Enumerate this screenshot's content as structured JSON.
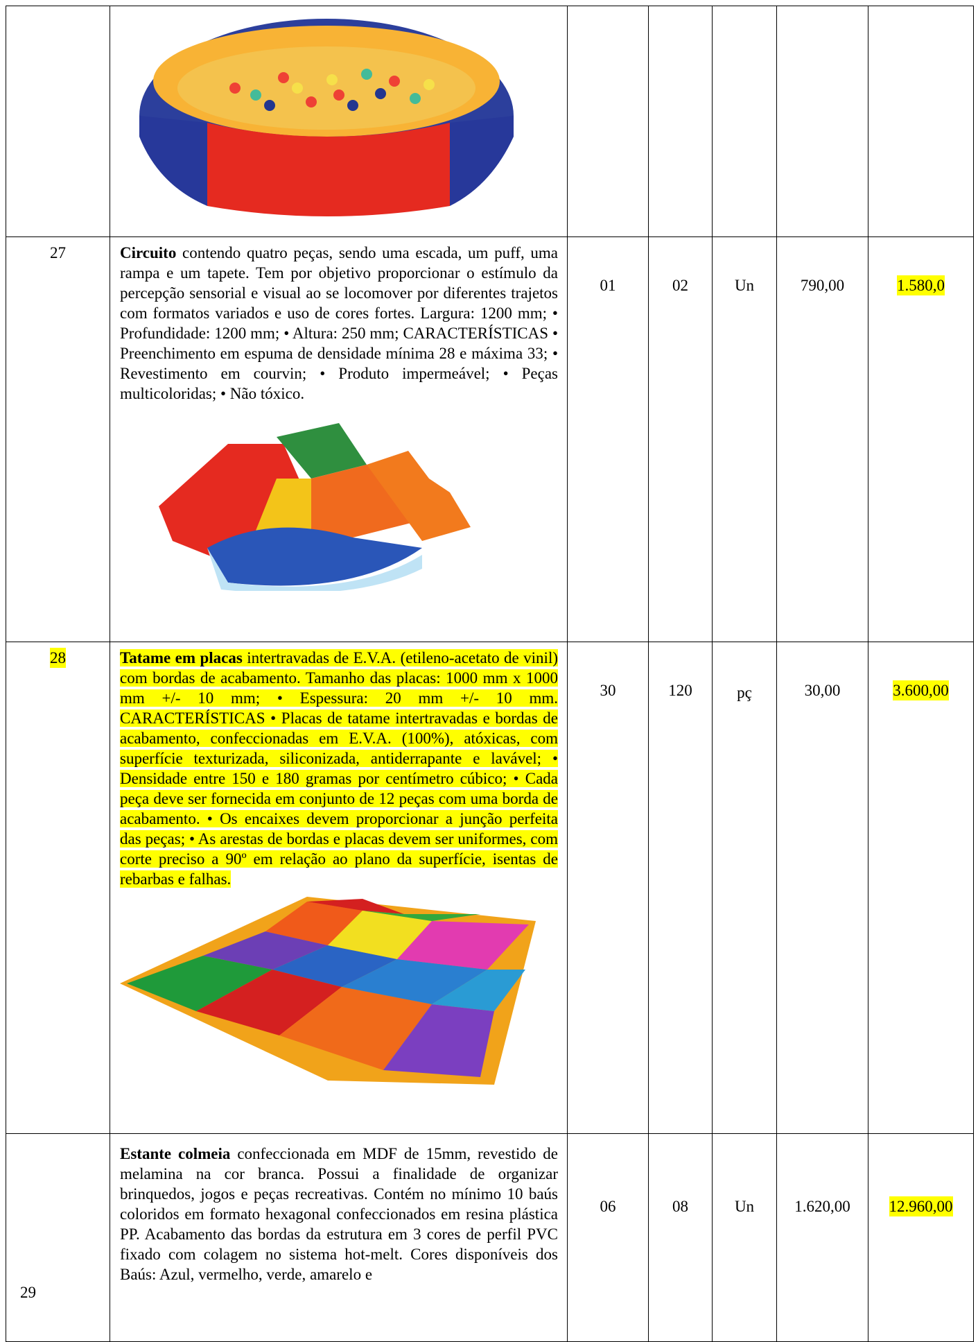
{
  "table": {
    "rows": [
      {
        "item": "27",
        "title": "Circuito",
        "text": " contendo quatro peças, sendo uma escada, um puff, uma rampa e um tapete. Tem por objetivo proporcionar o estímulo da percepção sensorial e visual ao se locomover por diferentes trajetos com formatos variados e uso de cores fortes. Largura: 1200 mm; • Profundidade: 1200 mm; • Altura: 250 mm; CARACTERÍSTICAS • Preenchimento em espuma de densidade mínima 28 e máxima 33; • Revestimento em courvin; • Produto impermeável; • Peças multicoloridas; • Não tóxico.",
        "qty_a": "01",
        "qty_b": "02",
        "unit": "Un",
        "unit_price": "790,00",
        "total": "1.580,0"
      },
      {
        "item": "28",
        "title": "Tatame em placas",
        "text": " intertravadas de E.V.A. (etileno-acetato de vinil) com bordas de acabamento. Tamanho das placas: 1000 mm x 1000 mm +/- 10 mm; • Espessura: 20 mm +/- 10 mm. CARACTERÍSTICAS • Placas de tatame intertravadas e bordas de acabamento, confeccionadas em E.V.A. (100%), atóxicas, com superfície texturizada, siliconizada, antiderrapante e lavável; • Densidade entre 150 e 180 gramas por centímetro cúbico; • Cada peça deve ser fornecida em conjunto de 12 peças com uma borda de acabamento. • Os encaixes devem proporcionar a junção perfeita das peças; • As arestas de bordas e placas devem ser uniformes, com corte preciso a 90º em relação ao plano da superfície, isentas de rebarbas e falhas.",
        "qty_a": "30",
        "qty_b": "120",
        "unit": "pç",
        "unit_price": "30,00",
        "total": "3.600,00"
      },
      {
        "item": "29",
        "title": "Estante colmeia",
        "text": " confeccionada em MDF de 15mm, revestido de melamina na cor branca. Possui a finalidade de organizar brinquedos, jogos e peças recreativas. Contém no mínimo 10 baús coloridos em formato hexagonal confeccionados em resina plástica PP. Acabamento das bordas da estrutura em 3 cores de perfil PVC fixado com colagem no sistema hot-melt. Cores disponíveis dos Baús: Azul, vermelho, verde, amarelo e",
        "qty_a": "06",
        "qty_b": "08",
        "unit": "Un",
        "unit_price": "1.620,00",
        "total": "12.960,00"
      }
    ]
  }
}
